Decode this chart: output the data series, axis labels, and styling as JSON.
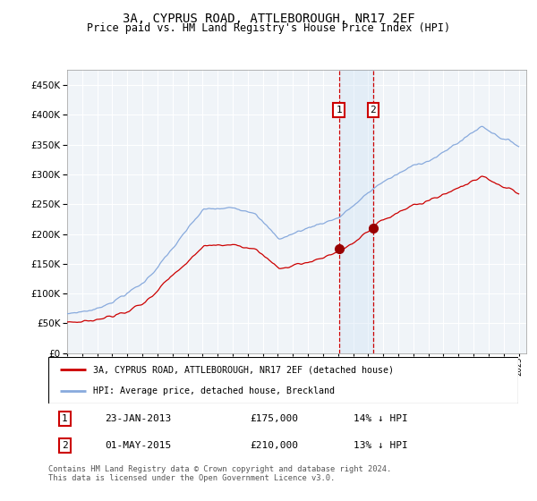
{
  "title": "3A, CYPRUS ROAD, ATTLEBOROUGH, NR17 2EF",
  "subtitle": "Price paid vs. HM Land Registry's House Price Index (HPI)",
  "sale1_display": "23-JAN-2013",
  "sale1_price_str": "£175,000",
  "sale1_pct": "14% ↓ HPI",
  "sale2_display": "01-MAY-2015",
  "sale2_price_str": "£210,000",
  "sale2_pct": "13% ↓ HPI",
  "legend_property": "3A, CYPRUS ROAD, ATTLEBOROUGH, NR17 2EF (detached house)",
  "legend_hpi": "HPI: Average price, detached house, Breckland",
  "footer": "Contains HM Land Registry data © Crown copyright and database right 2024.\nThis data is licensed under the Open Government Licence v3.0.",
  "property_color": "#cc0000",
  "hpi_color": "#88aadd",
  "vline_color": "#cc0000",
  "shade_color": "#ddeeff",
  "marker_color": "#990000",
  "ylim_min": 0,
  "ylim_max": 475000,
  "yticks": [
    0,
    50000,
    100000,
    150000,
    200000,
    250000,
    300000,
    350000,
    400000,
    450000
  ],
  "sale1_year": 2013.05,
  "sale2_year": 2015.33,
  "sale1_price": 175000,
  "sale2_price": 210000,
  "bg_color": "#f0f4f8"
}
